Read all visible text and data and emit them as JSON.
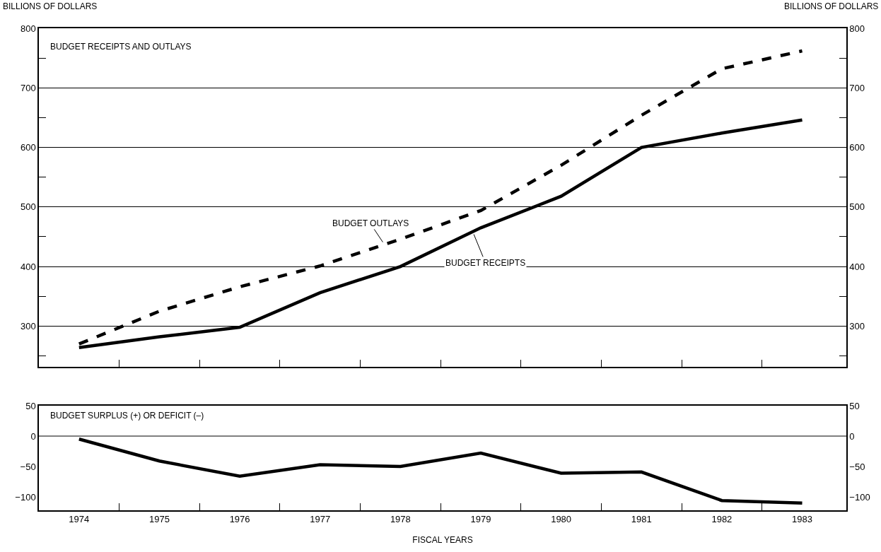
{
  "chart_data": [
    {
      "type": "line",
      "title": "BUDGET RECEIPTS AND OUTLAYS",
      "ylabel": "BILLIONS OF DOLLARS",
      "y2label": "BILLIONS OF DOLLARS",
      "x": [
        1974,
        1975,
        1976,
        1977,
        1978,
        1979,
        1980,
        1981,
        1982,
        1983
      ],
      "xlim": [
        1973.5,
        1983.55
      ],
      "xticks": [
        {
          "value": 1974.5,
          "label": null
        },
        {
          "value": 1975.5,
          "label": null
        },
        {
          "value": 1976.5,
          "label": null
        },
        {
          "value": 1977.5,
          "label": null
        },
        {
          "value": 1978.5,
          "label": null
        },
        {
          "value": 1979.5,
          "label": null
        },
        {
          "value": 1980.5,
          "label": null
        },
        {
          "value": 1981.5,
          "label": null
        },
        {
          "value": 1982.5,
          "label": null
        }
      ],
      "tick_labels": "y",
      "ylim": [
        232,
        800
      ],
      "yticks": [
        {
          "value": 250,
          "label": null
        },
        300,
        {
          "value": 350,
          "label": null
        },
        400,
        {
          "value": 450,
          "label": null
        },
        500,
        {
          "value": 550,
          "label": null
        },
        600,
        {
          "value": 650,
          "label": null
        },
        700,
        {
          "value": 750,
          "label": null
        },
        800
      ],
      "y2lim": [
        232,
        800
      ],
      "y2ticks": [
        {
          "value": 250,
          "label": null
        },
        300,
        {
          "value": 350,
          "label": null
        },
        400,
        {
          "value": 450,
          "label": null
        },
        500,
        {
          "value": 550,
          "label": null
        },
        600,
        {
          "value": 650,
          "label": null
        },
        700,
        {
          "value": 750,
          "label": null
        },
        800
      ],
      "grid": "y",
      "legend": false,
      "marker": "none",
      "series": [
        {
          "name": "BUDGET OUTLAYS",
          "color": "#000000",
          "line_style": "dashed",
          "values": [
            270,
            325,
            366,
            401,
            446,
            494,
            570,
            654,
            732,
            762
          ]
        },
        {
          "name": "BUDGET RECEIPTS",
          "color": "#000000",
          "line_style": "solid",
          "values": [
            264,
            282,
            298,
            356,
            400,
            465,
            518,
            600,
            624,
            646
          ]
        }
      ]
    },
    {
      "type": "line",
      "title": "BUDGET SURPLUS (+) OR DEFICIT (–)",
      "xlabel": "FISCAL YEARS",
      "x": [
        1974,
        1975,
        1976,
        1977,
        1978,
        1979,
        1980,
        1981,
        1982,
        1983
      ],
      "xlim": [
        1973.5,
        1983.55
      ],
      "xticks": [
        1974,
        {
          "value": 1974.5,
          "label": null
        },
        1975,
        {
          "value": 1975.5,
          "label": null
        },
        1976,
        {
          "value": 1976.5,
          "label": null
        },
        1977,
        {
          "value": 1977.5,
          "label": null
        },
        1978,
        {
          "value": 1978.5,
          "label": null
        },
        1979,
        {
          "value": 1979.5,
          "label": null
        },
        1980,
        {
          "value": 1980.5,
          "label": null
        },
        1981,
        {
          "value": 1981.5,
          "label": null
        },
        1982,
        {
          "value": 1982.5,
          "label": null
        },
        1983
      ],
      "ylim": [
        -122,
        50
      ],
      "yticks": [
        -100,
        -50,
        0,
        50
      ],
      "y2lim": [
        -122,
        50
      ],
      "y2ticks": [
        -100,
        -50,
        0,
        50
      ],
      "grid": false,
      "legend": false,
      "marker": "none",
      "ref_lines": [
        {
          "axis": "y",
          "value": 0,
          "color": "#000000"
        }
      ],
      "series": [
        {
          "color": "#000000",
          "line_style": "solid",
          "values": [
            -5,
            -41,
            -66,
            -47,
            -50,
            -28,
            -61,
            -59,
            -106,
            -110
          ]
        }
      ]
    }
  ]
}
